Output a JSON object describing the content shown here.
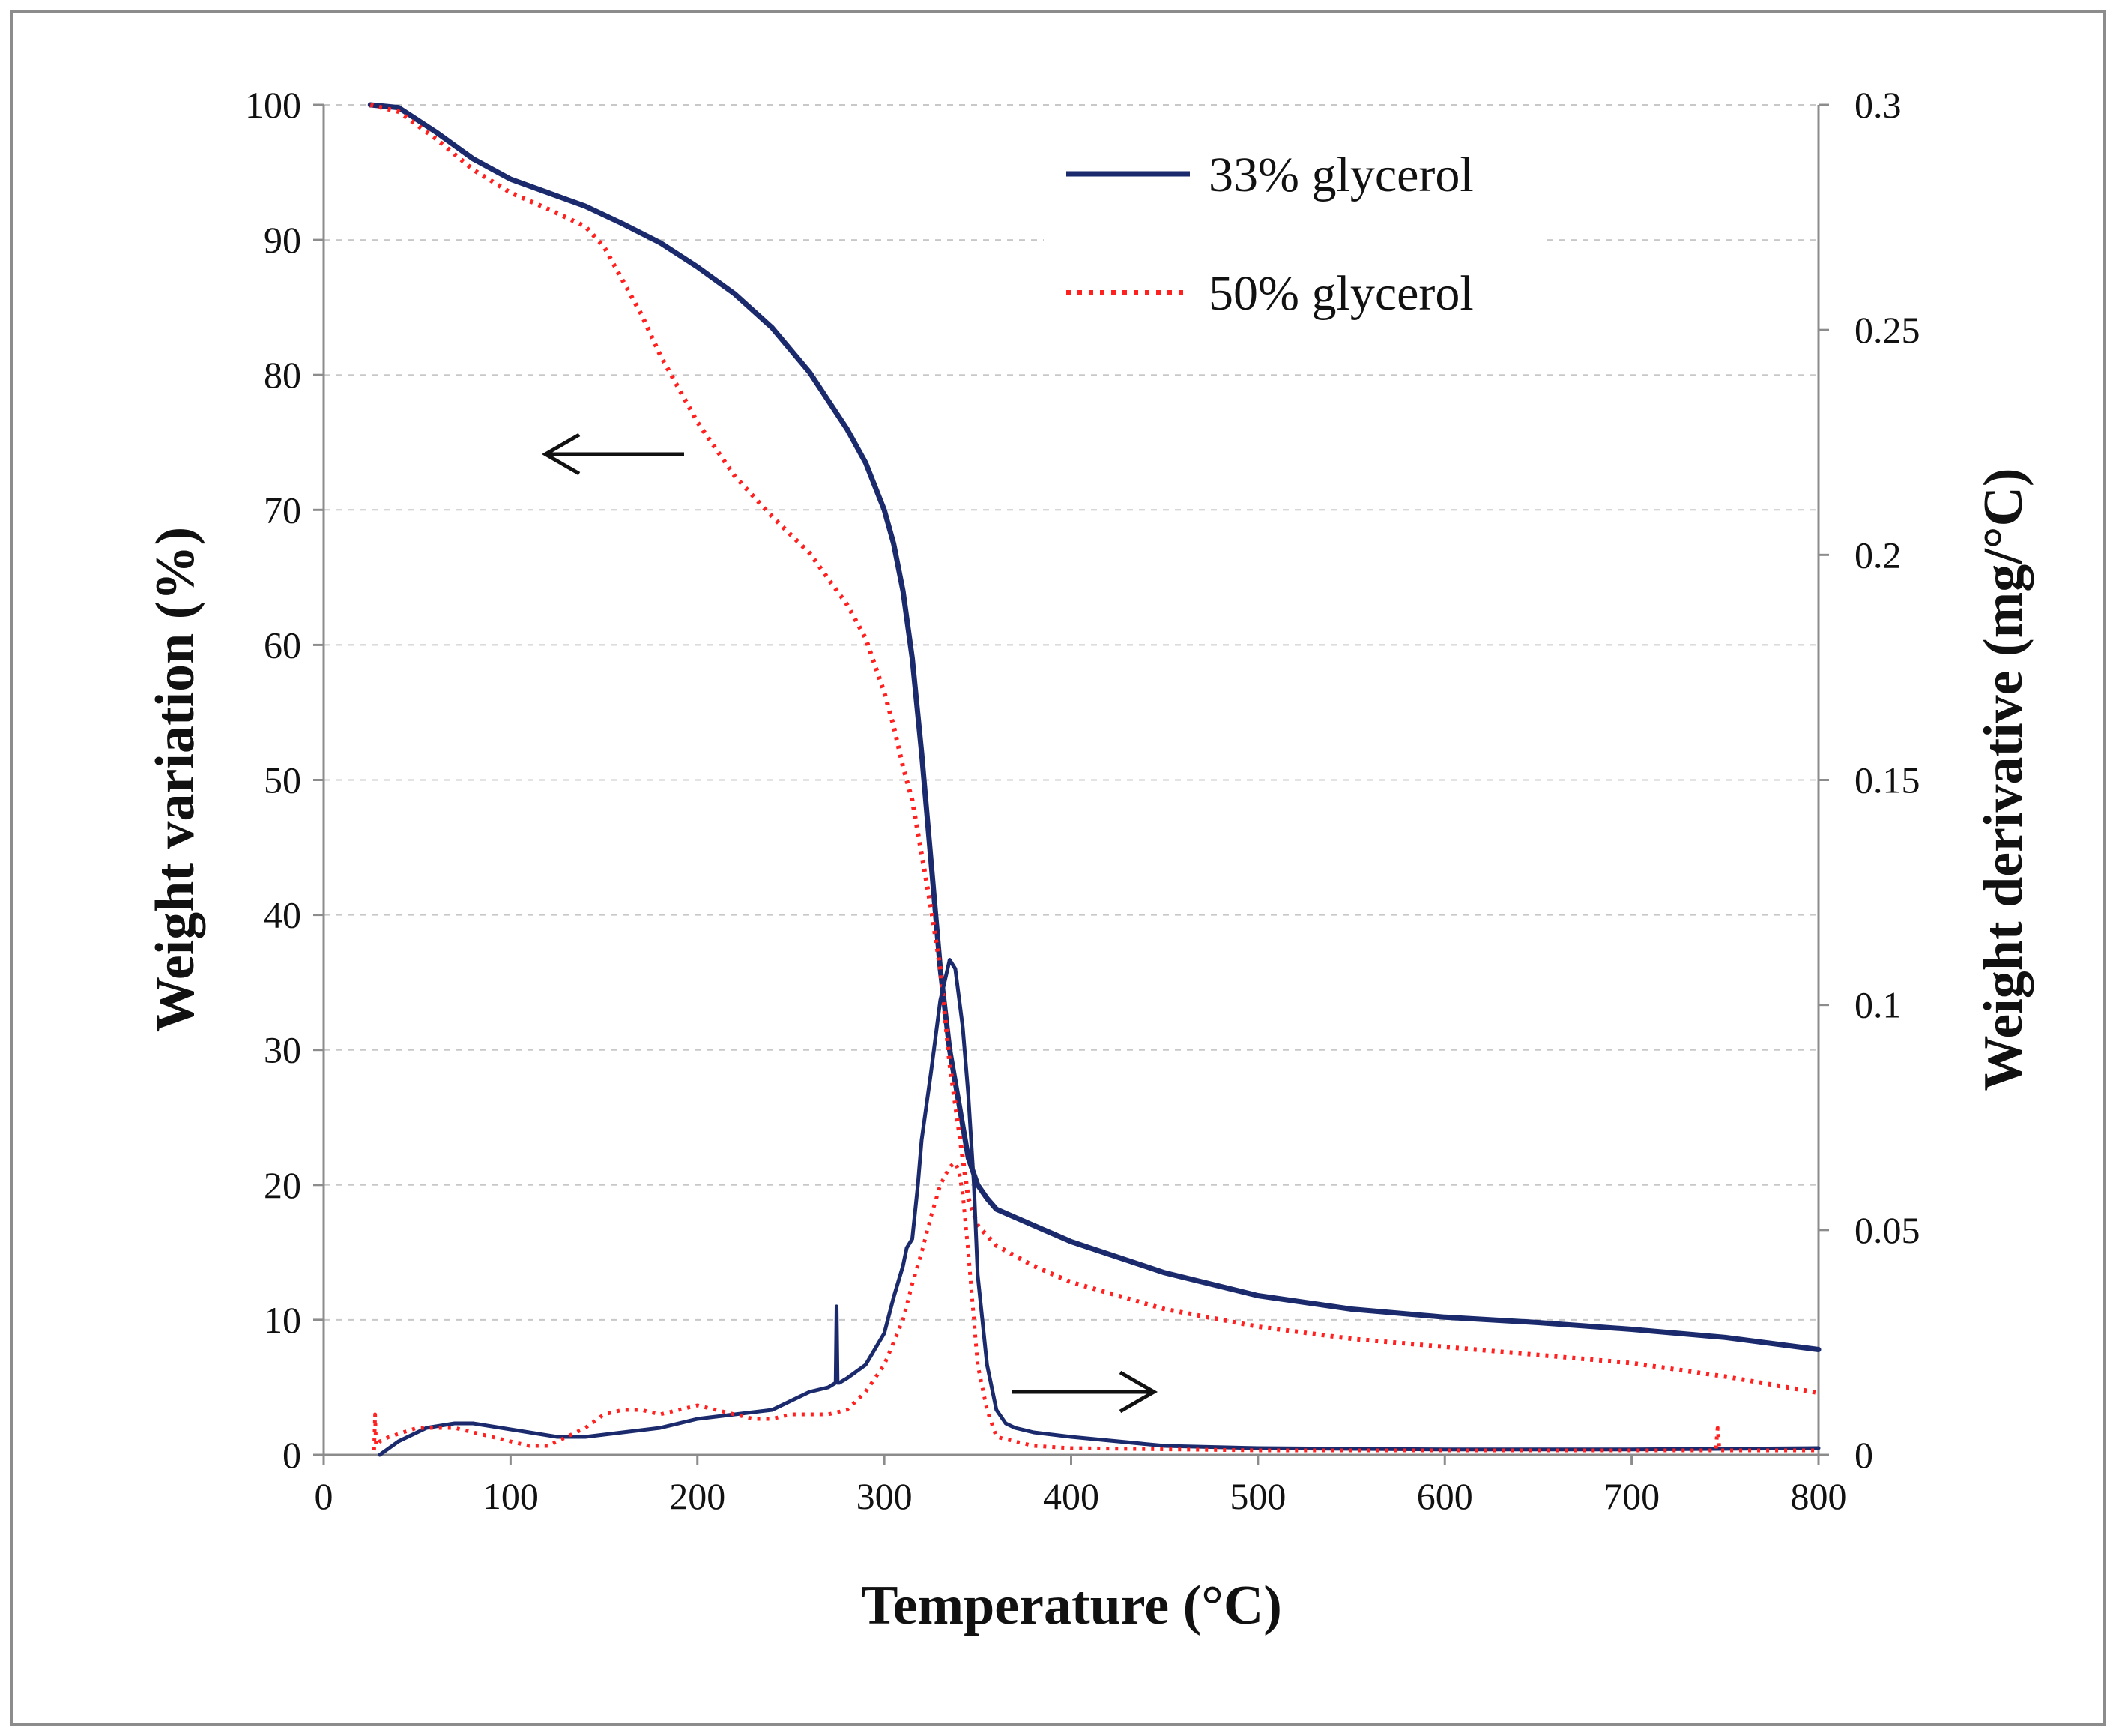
{
  "chart_data": {
    "type": "line",
    "title": "",
    "xlabel": "Temperature (°C)",
    "ylabel_left": "Weight variation (%)",
    "ylabel_right": "Weight derivative (mg/°C)",
    "xlim": [
      0,
      800
    ],
    "ylim_left": [
      0,
      100
    ],
    "ylim_right": [
      0,
      0.3
    ],
    "xticks": [
      0,
      100,
      200,
      300,
      400,
      500,
      600,
      700,
      800
    ],
    "xtick_labels": [
      "0",
      "100",
      "200",
      "300",
      "400",
      "500",
      "600",
      "700",
      "800"
    ],
    "yticks_left": [
      0,
      10,
      20,
      30,
      40,
      50,
      60,
      70,
      80,
      90,
      100
    ],
    "ytick_labels_left": [
      "0",
      "10",
      "20",
      "30",
      "40",
      "50",
      "60",
      "70",
      "80",
      "90",
      "100"
    ],
    "yticks_right": [
      0,
      0.05,
      0.1,
      0.15,
      0.2,
      0.25,
      0.3
    ],
    "ytick_labels_right": [
      "0",
      "0.05",
      "0.1",
      "0.15",
      "0.2",
      "0.25",
      "0.3"
    ],
    "grid": "horizontal dashed",
    "legend_position": "top-right",
    "colors": {
      "g33": "#1a2a6c",
      "g50": "#ff2020",
      "arrow": "#111111",
      "grid": "#c8c8c8"
    },
    "series": [
      {
        "name": "33% glycerol",
        "kind": "weight",
        "axis": "left",
        "style": "solid",
        "x": [
          25,
          40,
          60,
          80,
          100,
          120,
          140,
          160,
          180,
          200,
          220,
          240,
          260,
          280,
          290,
          300,
          305,
          310,
          315,
          320,
          325,
          330,
          335,
          340,
          345,
          350,
          355,
          360,
          380,
          400,
          450,
          500,
          550,
          600,
          650,
          700,
          750,
          800
        ],
        "y": [
          100,
          99.8,
          98,
          96,
          94.5,
          93.5,
          92.5,
          91.2,
          89.8,
          88,
          86,
          83.5,
          80.2,
          76,
          73.5,
          70,
          67.5,
          64,
          59,
          52,
          44,
          36,
          30,
          26,
          22,
          20,
          19,
          18.2,
          17,
          15.8,
          13.5,
          11.8,
          10.8,
          10.2,
          9.8,
          9.3,
          8.7,
          7.8
        ]
      },
      {
        "name": "50% glycerol",
        "kind": "weight",
        "axis": "left",
        "style": "dotted",
        "x": [
          25,
          40,
          60,
          80,
          100,
          120,
          140,
          150,
          160,
          170,
          180,
          190,
          200,
          220,
          240,
          260,
          280,
          290,
          300,
          305,
          310,
          315,
          320,
          325,
          330,
          335,
          340,
          345,
          350,
          360,
          380,
          400,
          450,
          500,
          550,
          600,
          650,
          700,
          750,
          800
        ],
        "y": [
          100,
          99.5,
          97.5,
          95.2,
          93.5,
          92.3,
          91,
          89.5,
          87,
          84.5,
          81.5,
          79,
          76.5,
          72.5,
          69.5,
          66.8,
          63,
          60.5,
          56.5,
          54,
          51,
          48.5,
          44.5,
          40.5,
          36,
          29,
          24,
          19,
          17,
          15.5,
          14,
          12.8,
          10.8,
          9.5,
          8.6,
          8,
          7.4,
          6.8,
          5.8,
          4.6
        ]
      },
      {
        "name": "33% glycerol derivative",
        "kind": "derivative",
        "axis": "right",
        "style": "solid",
        "x": [
          30,
          40,
          55,
          70,
          80,
          95,
          110,
          125,
          140,
          160,
          180,
          200,
          220,
          240,
          250,
          260,
          270,
          274,
          274.5,
          275,
          276,
          280,
          290,
          300,
          305,
          310,
          312,
          315,
          318,
          320,
          325,
          330,
          335,
          338,
          342,
          345,
          348,
          350,
          355,
          360,
          365,
          370,
          380,
          400,
          450,
          500,
          600,
          700,
          800
        ],
        "y": [
          0,
          0.003,
          0.006,
          0.007,
          0.007,
          0.006,
          0.005,
          0.004,
          0.004,
          0.005,
          0.006,
          0.008,
          0.009,
          0.01,
          0.012,
          0.014,
          0.015,
          0.016,
          0.033,
          0.016,
          0.016,
          0.017,
          0.02,
          0.027,
          0.035,
          0.042,
          0.046,
          0.048,
          0.06,
          0.07,
          0.085,
          0.101,
          0.11,
          0.108,
          0.095,
          0.08,
          0.06,
          0.04,
          0.02,
          0.01,
          0.007,
          0.006,
          0.005,
          0.004,
          0.002,
          0.0015,
          0.0012,
          0.0012,
          0.0015
        ]
      },
      {
        "name": "50% glycerol derivative",
        "kind": "derivative",
        "axis": "right",
        "style": "dotted",
        "x": [
          27,
          27.5,
          28,
          30,
          35,
          50,
          60,
          70,
          80,
          90,
          100,
          110,
          120,
          130,
          140,
          150,
          160,
          170,
          180,
          190,
          200,
          210,
          220,
          230,
          240,
          250,
          260,
          270,
          280,
          290,
          300,
          305,
          310,
          315,
          320,
          325,
          330,
          335,
          338,
          340,
          342,
          345,
          348,
          350,
          355,
          360,
          380,
          400,
          500,
          600,
          700,
          745,
          746,
          747,
          750,
          800
        ],
        "y": [
          0.001,
          0.009,
          0.002,
          0.003,
          0.004,
          0.006,
          0.006,
          0.006,
          0.005,
          0.004,
          0.003,
          0.002,
          0.002,
          0.004,
          0.006,
          0.009,
          0.01,
          0.01,
          0.009,
          0.01,
          0.011,
          0.01,
          0.009,
          0.008,
          0.008,
          0.009,
          0.009,
          0.009,
          0.01,
          0.014,
          0.02,
          0.025,
          0.03,
          0.038,
          0.045,
          0.053,
          0.06,
          0.064,
          0.065,
          0.063,
          0.058,
          0.045,
          0.03,
          0.02,
          0.01,
          0.004,
          0.002,
          0.0015,
          0.001,
          0.001,
          0.001,
          0.001,
          0.006,
          0.001,
          0.001,
          0.001
        ]
      }
    ],
    "annotations": [
      {
        "type": "arrow",
        "direction": "left",
        "label": "",
        "meaning": "weight curves use left axis"
      },
      {
        "type": "arrow",
        "direction": "right",
        "label": "",
        "meaning": "derivative curves use right axis"
      }
    ],
    "legend": [
      {
        "label": "33% glycerol",
        "style": "solid"
      },
      {
        "label": "50% glycerol",
        "style": "dotted"
      }
    ]
  }
}
